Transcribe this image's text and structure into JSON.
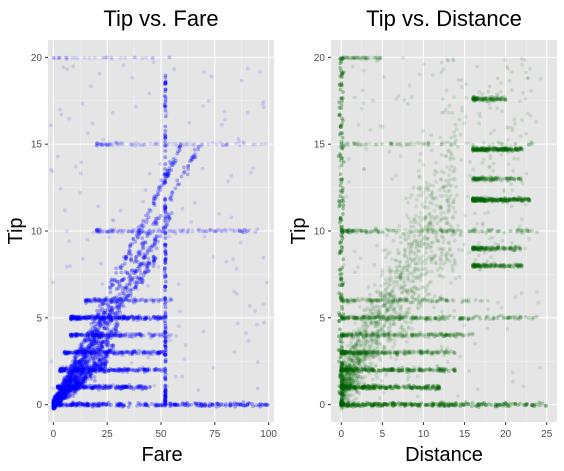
{
  "chart_data": [
    {
      "type": "scatter",
      "title": "Tip vs. Fare",
      "xlabel": "Fare",
      "ylabel": "Tip",
      "xlim": [
        -2.5,
        102.5
      ],
      "ylim": [
        -1,
        21
      ],
      "xticks": [
        0,
        25,
        50,
        75,
        100
      ],
      "yticks": [
        0,
        5,
        10,
        15,
        20
      ],
      "grid": true,
      "point_color": "#0000ff",
      "panel_bg": "#e5e5e5",
      "ridges": [
        {
          "x0": 0,
          "x1": 60,
          "slope": 0.25
        },
        {
          "x0": 0,
          "x1": 68,
          "slope": 0.22
        },
        {
          "x0": 0,
          "x1": 55,
          "slope": 0.2
        },
        {
          "x0": 0,
          "x1": 48,
          "slope": 0.18
        },
        {
          "x0": 0,
          "x1": 30,
          "slope": 0.15
        },
        {
          "x0": 0,
          "x1": 28,
          "slope": 0.12
        },
        {
          "x0": 0,
          "x1": 25,
          "slope": 0.1
        }
      ],
      "horizontal_bands": [
        {
          "y": 0,
          "x0": 0,
          "x1": 100,
          "density": 1.0
        },
        {
          "y": 1,
          "x0": 2,
          "x1": 45,
          "density": 0.8
        },
        {
          "y": 2,
          "x0": 3,
          "x1": 52,
          "density": 0.7
        },
        {
          "y": 3,
          "x0": 5,
          "x1": 52,
          "density": 0.6
        },
        {
          "y": 4,
          "x0": 8,
          "x1": 55,
          "density": 0.5
        },
        {
          "y": 5,
          "x0": 8,
          "x1": 52,
          "density": 0.8
        },
        {
          "y": 6,
          "x0": 15,
          "x1": 55,
          "density": 0.3
        },
        {
          "y": 10,
          "x0": 20,
          "x1": 95,
          "density": 0.3
        },
        {
          "y": 15,
          "x0": 20,
          "x1": 100,
          "density": 0.15
        },
        {
          "y": 20,
          "x0": 0,
          "x1": 55,
          "density": 0.1
        }
      ],
      "vertical_bands": [
        {
          "x": 52,
          "y0": 0,
          "y1": 19,
          "density": 0.8
        }
      ]
    },
    {
      "type": "scatter",
      "title": "Tip vs. Distance",
      "xlabel": "Distance",
      "ylabel": "Tip",
      "xlim": [
        -1.25,
        26.25
      ],
      "ylim": [
        -1,
        21
      ],
      "xticks": [
        0,
        5,
        10,
        15,
        20,
        25
      ],
      "yticks": [
        0,
        5,
        10,
        15,
        20
      ],
      "grid": true,
      "point_color": "#006400",
      "panel_bg": "#e5e5e5",
      "trend": {
        "slope": 0.8,
        "intercept": 1.0,
        "x_max": 14
      },
      "horizontal_bands": [
        {
          "y": 0,
          "x0": 0,
          "x1": 25,
          "density": 1.0
        },
        {
          "y": 1,
          "x0": 0,
          "x1": 12,
          "density": 0.8
        },
        {
          "y": 2,
          "x0": 0,
          "x1": 14,
          "density": 0.7
        },
        {
          "y": 3,
          "x0": 0,
          "x1": 14,
          "density": 0.6
        },
        {
          "y": 4,
          "x0": 0,
          "x1": 16,
          "density": 0.5
        },
        {
          "y": 5,
          "x0": 0,
          "x1": 24,
          "density": 0.6
        },
        {
          "y": 6,
          "x0": 0,
          "x1": 18,
          "density": 0.3
        },
        {
          "y": 8,
          "x0": 16,
          "x1": 22,
          "density": 0.4
        },
        {
          "y": 9,
          "x0": 16,
          "x1": 22,
          "density": 0.4
        },
        {
          "y": 10,
          "x0": 0,
          "x1": 24,
          "density": 0.4
        },
        {
          "y": 11.8,
          "x0": 16,
          "x1": 23,
          "density": 0.7
        },
        {
          "y": 13,
          "x0": 16,
          "x1": 22,
          "density": 0.3
        },
        {
          "y": 14.7,
          "x0": 16,
          "x1": 22,
          "density": 0.6
        },
        {
          "y": 15,
          "x0": 0,
          "x1": 24,
          "density": 0.15
        },
        {
          "y": 17.6,
          "x0": 16,
          "x1": 20,
          "density": 0.3
        },
        {
          "y": 20,
          "x0": 0,
          "x1": 5,
          "density": 0.2
        }
      ],
      "vertical_bands": [
        {
          "x": 0,
          "y0": 0,
          "y1": 20,
          "density": 0.9
        }
      ]
    }
  ]
}
